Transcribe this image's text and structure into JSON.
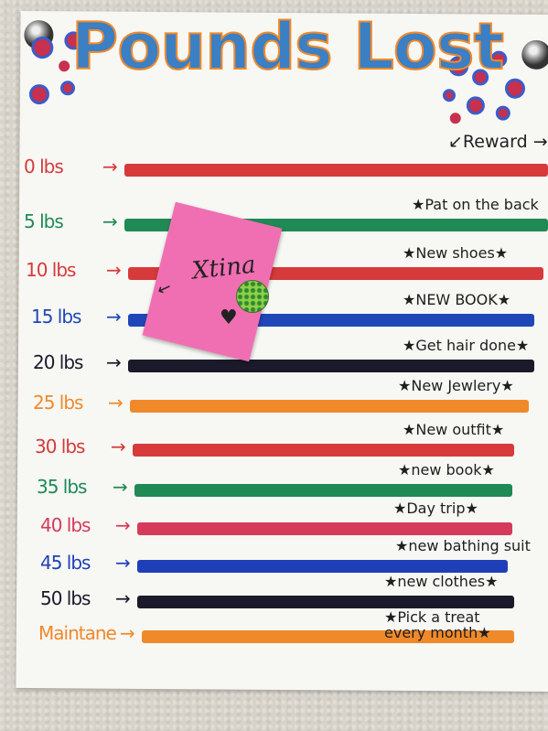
{
  "poster": {
    "title": "Pounds Lost",
    "reward_header": "↙Reward →"
  },
  "note": {
    "text": "Xtina",
    "heart": "♥"
  },
  "rows": [
    {
      "label": "0 lbs",
      "reward": "",
      "color": "#d63a3a"
    },
    {
      "label": "5 lbs",
      "reward": "★Pat on the back",
      "color": "#1f8a55"
    },
    {
      "label": "10 lbs",
      "reward": "★New shoes★",
      "color": "#d63a3a"
    },
    {
      "label": "15 lbs",
      "reward": "★NEW BOOK★",
      "color": "#1f47b8"
    },
    {
      "label": "20 lbs",
      "reward": "★Get hair done★",
      "color": "#1a1a2a"
    },
    {
      "label": "25 lbs",
      "reward": "★New Jewlery★",
      "color": "#f0892a"
    },
    {
      "label": "30 lbs",
      "reward": "★New outfit★",
      "color": "#d63a3a"
    },
    {
      "label": "35 lbs",
      "reward": "★new book★",
      "color": "#1f8a55"
    },
    {
      "label": "40 lbs",
      "reward": "★Day trip★",
      "color": "#d63a5a"
    },
    {
      "label": "45 lbs",
      "reward": "★new bathing suit",
      "color": "#1f3fb8"
    },
    {
      "label": "50 lbs",
      "reward": "★new clothes★",
      "color": "#1a1a2a"
    },
    {
      "label": "Maintane",
      "reward": "★Pick a treat every month★",
      "color": "#f0892a"
    }
  ],
  "arrow_glyph": "→"
}
